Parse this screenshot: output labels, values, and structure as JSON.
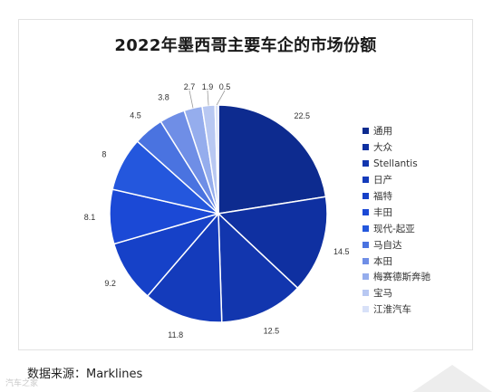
{
  "chart_data": {
    "type": "pie",
    "title": "2022年墨西哥主要车企的市场份额",
    "categories": [
      "通用",
      "大众",
      "Stellantis",
      "日产",
      "福特",
      "丰田",
      "现代-起亚",
      "马自达",
      "本田",
      "梅赛德斯奔驰",
      "宝马",
      "江淮汽车"
    ],
    "values": [
      22.5,
      14.5,
      12.5,
      11.8,
      9.2,
      8.1,
      8,
      4.5,
      3.8,
      2.7,
      1.9,
      0.5
    ],
    "value_labels": [
      "22.5",
      "14.5",
      "12.5",
      "11.8",
      "9.2",
      "8.1",
      "8",
      "4.5",
      "3.8",
      "2.7",
      "1.9",
      "0.5"
    ],
    "colors": [
      "#0d2b8f",
      "#0f30a1",
      "#1236ae",
      "#143bbb",
      "#1641c8",
      "#1b49d6",
      "#2457dd",
      "#4a73e0",
      "#6f8ee6",
      "#95aded",
      "#b8c8f2",
      "#d8e1f8"
    ],
    "legend_position": "right"
  },
  "source_text": "数据来源：Marklines",
  "watermark_text": "汽车之家"
}
